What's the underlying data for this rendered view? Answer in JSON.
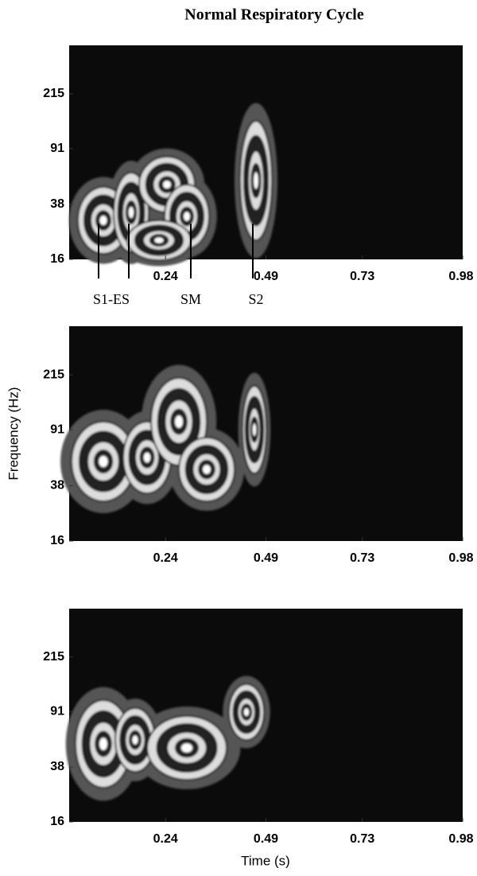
{
  "chart_data": [
    {
      "type": "contour",
      "title": "Normal Respiratory Cycle",
      "xlim": [
        0,
        0.98
      ],
      "xticks": [
        0.24,
        0.49,
        0.73,
        0.98
      ],
      "ylim": [
        16,
        460
      ],
      "yticks": [
        16,
        38,
        91,
        215
      ],
      "log_y": true,
      "annotations": [
        "S1-ES",
        "SM",
        "S2"
      ]
    },
    {
      "type": "contour",
      "ylabel": "Frequency (Hz)",
      "xlim": [
        0,
        0.98
      ],
      "xticks": [
        0.24,
        0.49,
        0.73,
        0.98
      ],
      "ylim": [
        16,
        460
      ],
      "yticks": [
        16,
        38,
        91,
        215
      ],
      "log_y": true
    },
    {
      "type": "contour",
      "xlabel": "Time (s)",
      "xlim": [
        0,
        0.98
      ],
      "xticks": [
        0.24,
        0.49,
        0.73,
        0.98
      ],
      "ylim": [
        16,
        460
      ],
      "yticks": [
        16,
        38,
        91,
        215
      ],
      "log_y": true
    }
  ]
}
